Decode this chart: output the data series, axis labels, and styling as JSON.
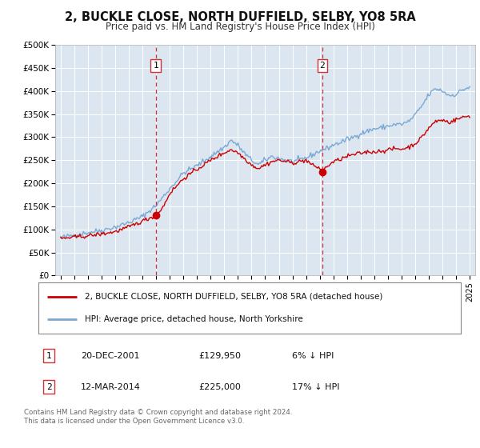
{
  "title": "2, BUCKLE CLOSE, NORTH DUFFIELD, SELBY, YO8 5RA",
  "subtitle": "Price paid vs. HM Land Registry's House Price Index (HPI)",
  "bg_color": "#ffffff",
  "plot_bg_color": "#dce6f0",
  "grid_color": "#ffffff",
  "ylim": [
    0,
    500000
  ],
  "yticks": [
    0,
    50000,
    100000,
    150000,
    200000,
    250000,
    300000,
    350000,
    400000,
    450000,
    500000
  ],
  "ytick_labels": [
    "£0",
    "£50K",
    "£100K",
    "£150K",
    "£200K",
    "£250K",
    "£300K",
    "£350K",
    "£400K",
    "£450K",
    "£500K"
  ],
  "xlim_start": 1994.6,
  "xlim_end": 2025.4,
  "xticks": [
    1995,
    1996,
    1997,
    1998,
    1999,
    2000,
    2001,
    2002,
    2003,
    2004,
    2005,
    2006,
    2007,
    2008,
    2009,
    2010,
    2011,
    2012,
    2013,
    2014,
    2015,
    2016,
    2017,
    2018,
    2019,
    2020,
    2021,
    2022,
    2023,
    2024,
    2025
  ],
  "sale1_x": 2001.97,
  "sale1_y": 129950,
  "sale1_label": "1",
  "sale1_date": "20-DEC-2001",
  "sale1_price": "£129,950",
  "sale1_hpi": "6% ↓ HPI",
  "sale2_x": 2014.19,
  "sale2_y": 225000,
  "sale2_label": "2",
  "sale2_date": "12-MAR-2014",
  "sale2_price": "£225,000",
  "sale2_hpi": "17% ↓ HPI",
  "line_color_red": "#cc0000",
  "line_color_blue": "#7aa8d4",
  "marker_color_red": "#cc0000",
  "vline_color": "#cc3333",
  "legend_label_red": "2, BUCKLE CLOSE, NORTH DUFFIELD, SELBY, YO8 5RA (detached house)",
  "legend_label_blue": "HPI: Average price, detached house, North Yorkshire",
  "footer1": "Contains HM Land Registry data © Crown copyright and database right 2024.",
  "footer2": "This data is licensed under the Open Government Licence v3.0."
}
